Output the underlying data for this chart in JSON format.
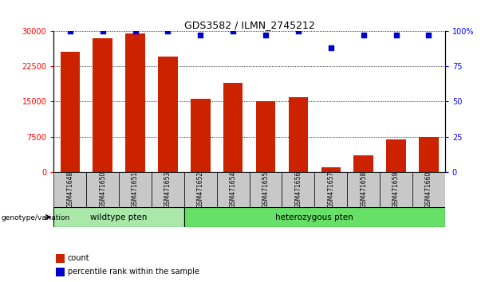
{
  "title": "GDS3582 / ILMN_2745212",
  "categories": [
    "GSM471648",
    "GSM471650",
    "GSM471651",
    "GSM471653",
    "GSM471652",
    "GSM471654",
    "GSM471655",
    "GSM471656",
    "GSM471657",
    "GSM471658",
    "GSM471659",
    "GSM471660"
  ],
  "bar_values": [
    25500,
    28500,
    29500,
    24500,
    15500,
    19000,
    15000,
    16000,
    1000,
    3500,
    7000,
    7500
  ],
  "percentile_values": [
    100,
    100,
    100,
    100,
    97,
    100,
    97,
    100,
    88,
    97,
    97,
    97
  ],
  "bar_color": "#cc2200",
  "dot_color": "#0000cc",
  "left_yticks": [
    0,
    7500,
    15000,
    22500,
    30000
  ],
  "right_yticks": [
    0,
    25,
    50,
    75,
    100
  ],
  "ylim_left": [
    0,
    30000
  ],
  "ylim_right": [
    0,
    100
  ],
  "wildtype_label": "wildtype pten",
  "heterozygous_label": "heterozygous pten",
  "wildtype_count": 4,
  "genotype_label": "genotype/variation",
  "legend_count_label": "count",
  "legend_percentile_label": "percentile rank within the sample",
  "bar_width": 0.6
}
